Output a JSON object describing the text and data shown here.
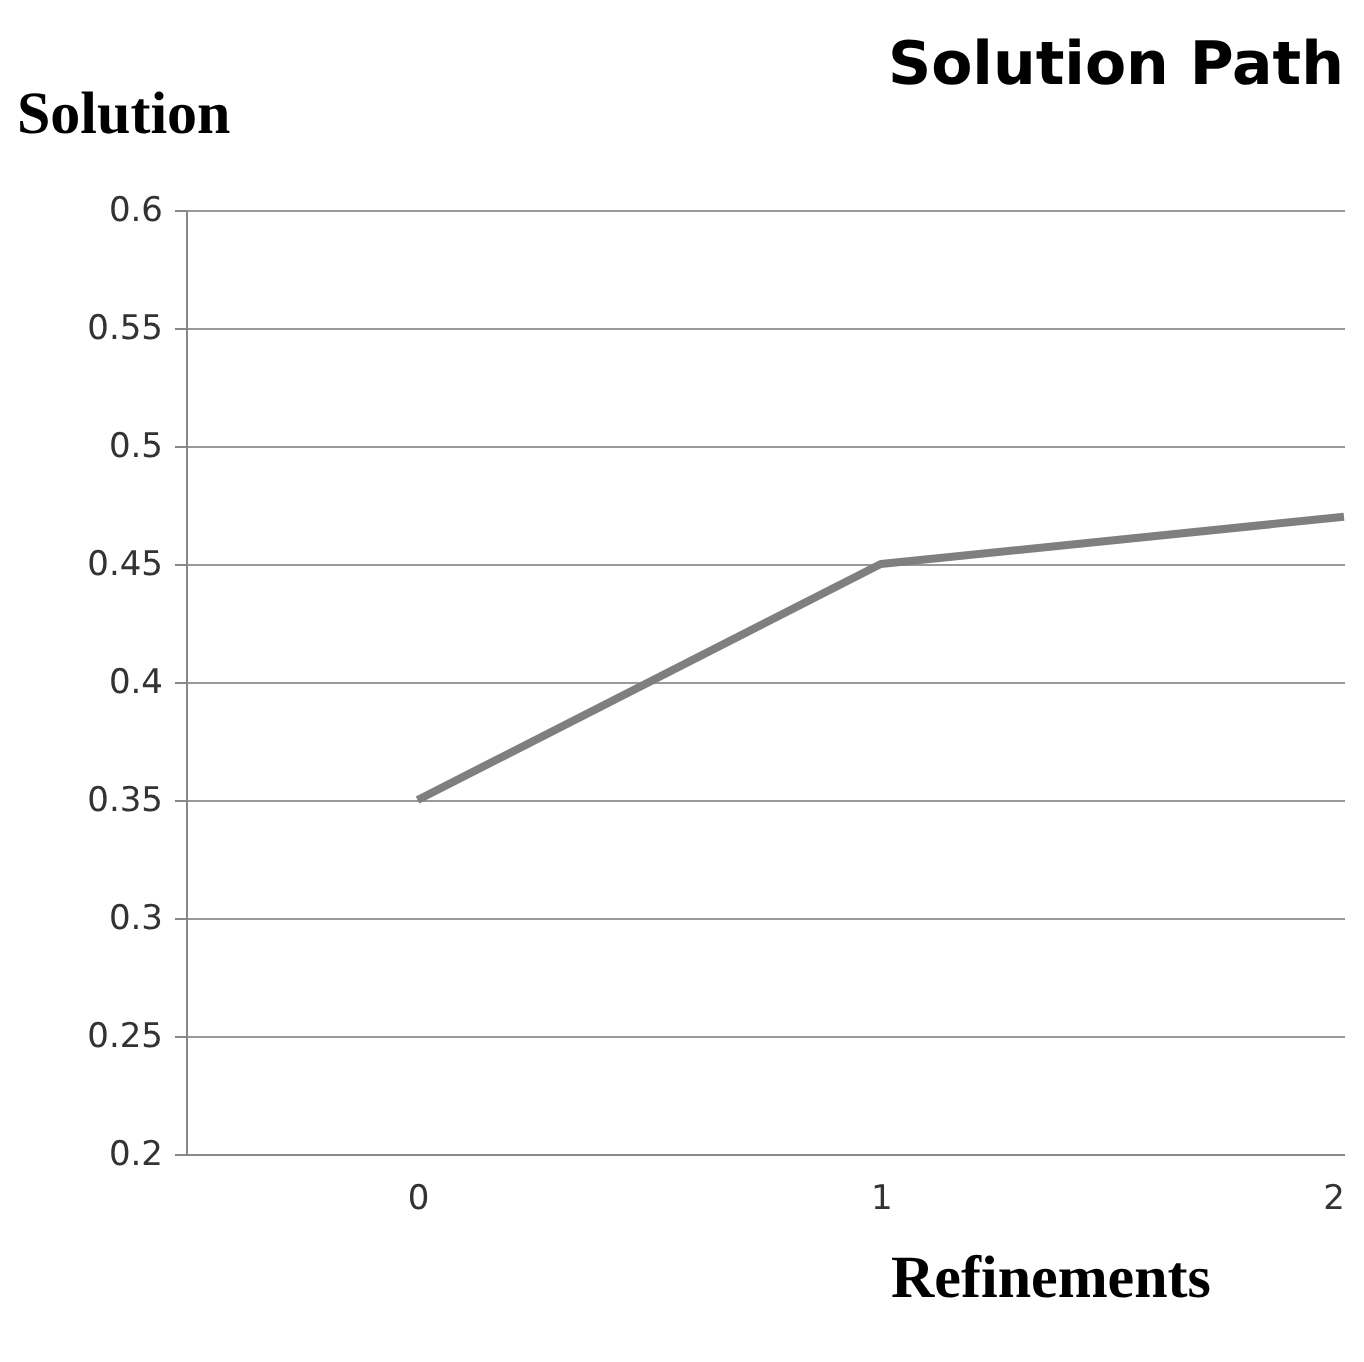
{
  "chart_data": {
    "type": "line",
    "title": "Solution Path",
    "xlabel": "Refinements",
    "ylabel": "Solution",
    "categories": [
      "0",
      "1",
      "2"
    ],
    "series": [
      {
        "color": "#7f7f7f",
        "values": [
          0.35,
          0.45,
          0.47
        ]
      }
    ],
    "ylim": [
      0.2,
      0.6
    ],
    "yticks": [
      0.2,
      0.25,
      0.3,
      0.35,
      0.4,
      0.45,
      0.5,
      0.55,
      0.6
    ],
    "grid": "y",
    "marker": "none",
    "line_style": "solid"
  }
}
